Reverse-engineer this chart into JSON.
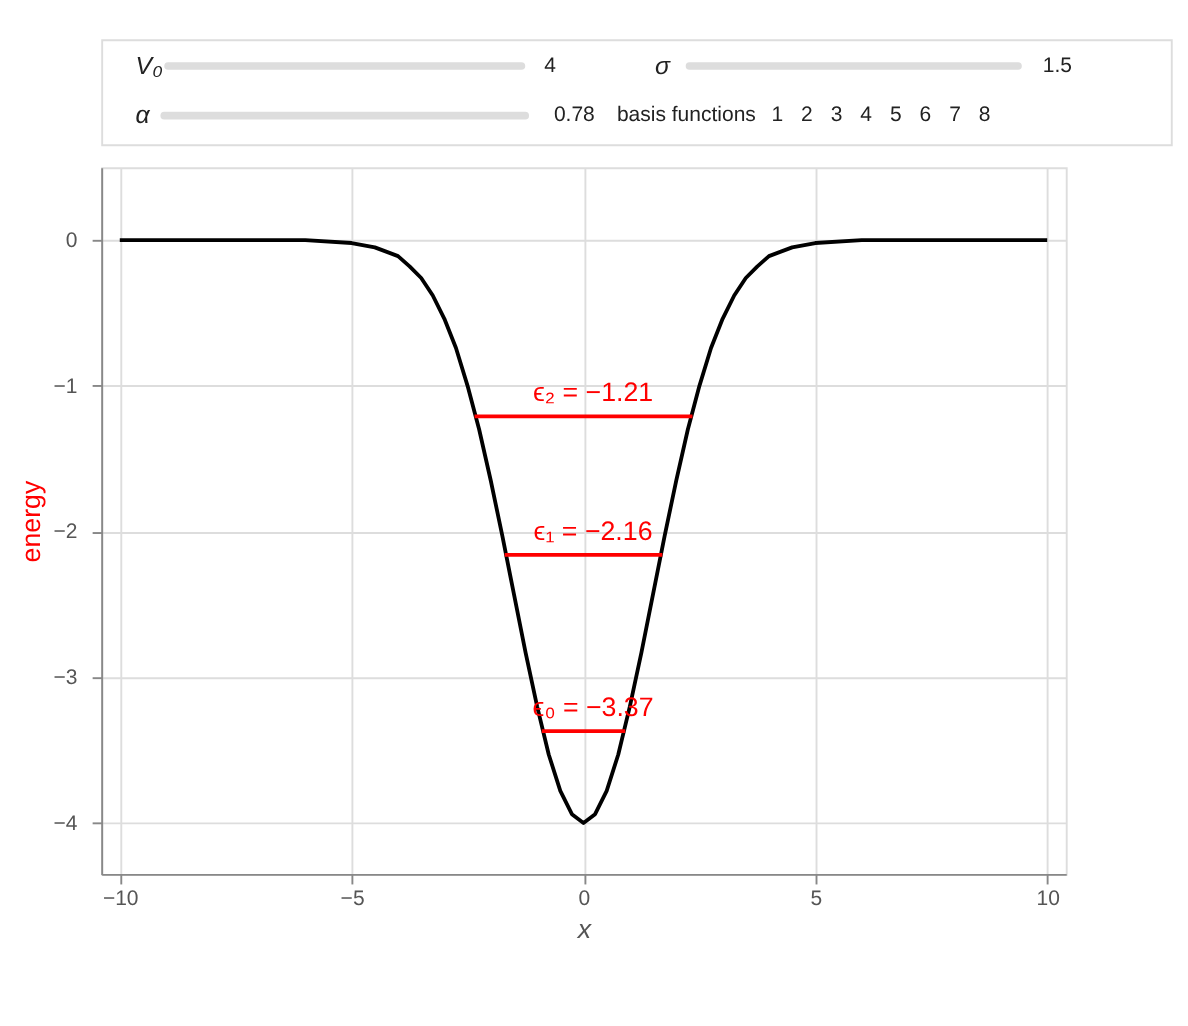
{
  "chart_data": {
    "type": "line",
    "xlabel": "x",
    "ylabel": "energy",
    "xlim": [
      -10.4,
      10.4
    ],
    "ylim": [
      -4.35,
      0.5
    ],
    "xticks": [
      -10,
      -5,
      0,
      5,
      10
    ],
    "yticks": [
      -4,
      -3,
      -2,
      -1,
      0
    ],
    "grid": true,
    "marker": "none",
    "line_style": "solid",
    "series": [
      {
        "color": "#000000",
        "x": [
          -10,
          -8,
          -6,
          -5,
          -4.5,
          -4,
          -3.75,
          -3.5,
          -3.25,
          -3,
          -2.75,
          -2.5,
          -2.25,
          -2,
          -1.75,
          -1.5,
          -1.25,
          -1,
          -0.75,
          -0.5,
          -0.25,
          0,
          0.25,
          0.5,
          0.75,
          1,
          1.25,
          1.5,
          1.75,
          2,
          2.25,
          2.5,
          2.75,
          3,
          3.25,
          3.5,
          3.75,
          4,
          4.5,
          5,
          6,
          8,
          10
        ],
        "values": [
          0,
          0,
          0,
          -0.02,
          -0.05,
          -0.11,
          -0.18,
          -0.26,
          -0.38,
          -0.54,
          -0.74,
          -1.0,
          -1.3,
          -1.65,
          -2.03,
          -2.43,
          -2.83,
          -3.2,
          -3.53,
          -3.78,
          -3.94,
          -4.0,
          -3.94,
          -3.78,
          -3.53,
          -3.2,
          -2.83,
          -2.43,
          -2.03,
          -1.65,
          -1.3,
          -1.0,
          -0.74,
          -0.54,
          -0.38,
          -0.26,
          -0.18,
          -0.11,
          -0.05,
          -0.02,
          0,
          0,
          0
        ]
      },
      {
        "color": "#ff0000",
        "x": [
          -2.35,
          2.35
        ],
        "values": [
          -1.21,
          -1.21
        ]
      },
      {
        "color": "#ff0000",
        "x": [
          -1.7,
          1.7
        ],
        "values": [
          -2.16,
          -2.16
        ]
      },
      {
        "color": "#ff0000",
        "x": [
          -0.9,
          0.9
        ],
        "values": [
          -3.37,
          -3.37
        ]
      }
    ],
    "annotations": [
      {
        "text": "ϵ₂ = −1.21",
        "y": -1.21
      },
      {
        "text": "ϵ₁ = −2.16",
        "y": -2.16
      },
      {
        "text": "ϵ₀ = −3.37",
        "y": -3.37
      },
      "V₀",
      "4",
      "σ",
      "1.5",
      "α",
      "0.78",
      "basis functions",
      "1",
      "2",
      "3",
      "4",
      "5",
      "6",
      "7",
      "8"
    ]
  }
}
